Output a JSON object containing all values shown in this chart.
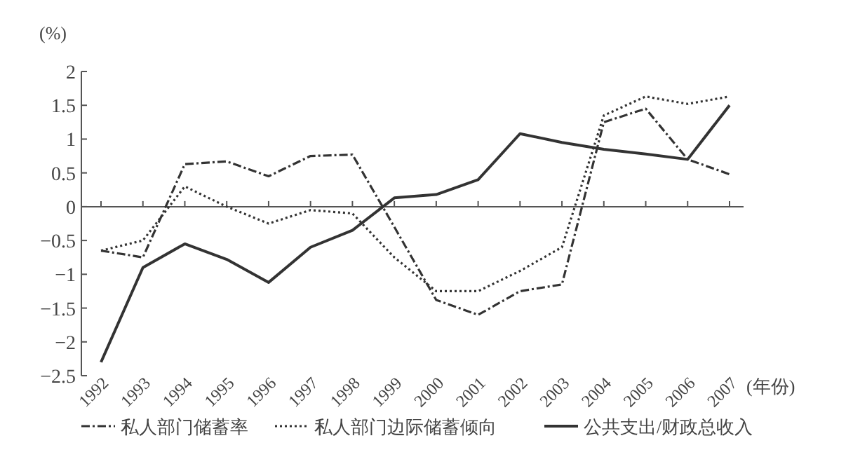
{
  "chart_data": {
    "type": "line",
    "ylabel": "(%)",
    "xlabel": "(年份)",
    "categories": [
      "1992",
      "1993",
      "1994",
      "1995",
      "1996",
      "1997",
      "1998",
      "1999",
      "2000",
      "2001",
      "2002",
      "2003",
      "2004",
      "2005",
      "2006",
      "2007"
    ],
    "series": [
      {
        "name": "私人部门储蓄率",
        "color": "#333333",
        "line_style": "dashdot",
        "values": [
          -0.65,
          -0.75,
          0.63,
          0.67,
          0.45,
          0.75,
          0.77,
          -0.3,
          -1.38,
          -1.6,
          -1.25,
          -1.15,
          1.25,
          1.45,
          0.7,
          0.48
        ]
      },
      {
        "name": "私人部门边际储蓄倾向",
        "color": "#333333",
        "line_style": "dotted",
        "values": [
          -0.65,
          -0.5,
          0.3,
          0,
          -0.25,
          -0.05,
          -0.1,
          -0.75,
          -1.25,
          -1.25,
          -0.95,
          -0.6,
          1.35,
          1.63,
          1.52,
          1.63
        ]
      },
      {
        "name": "公共支出/财政总收入",
        "color": "#333333",
        "line_style": "solid",
        "values": [
          -2.3,
          -0.9,
          -0.55,
          -0.78,
          -1.12,
          -0.6,
          -0.35,
          0.13,
          0.18,
          0.4,
          1.08,
          0.95,
          0.85,
          0.78,
          0.7,
          1.5
        ]
      }
    ],
    "ylim": [
      -2.5,
      2
    ],
    "yticks": [
      -2.5,
      -2,
      -1.5,
      -1,
      -0.5,
      0,
      0.5,
      1,
      1.5,
      2
    ],
    "legend": "bottom",
    "marker": "none"
  }
}
